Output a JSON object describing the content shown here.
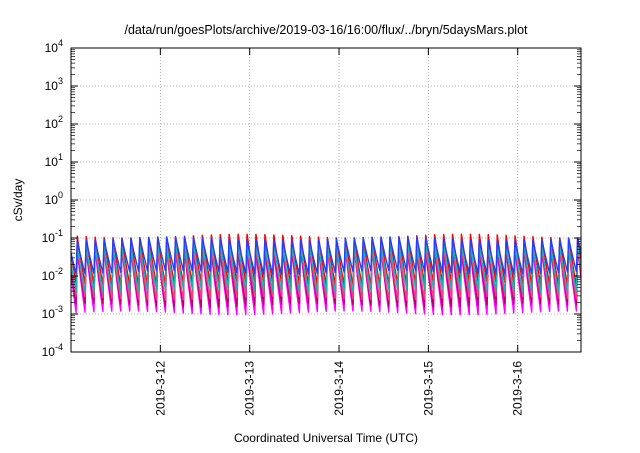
{
  "chart_data": {
    "type": "line",
    "title": "/data/run/goesPlots/archive/2019-03-16/16:00/flux/../bryn/5daysMars.plot",
    "xlabel": "Coordinated Universal Time (UTC)",
    "ylabel": "cSv/day",
    "x_type": "datetime",
    "xlim": [
      "2019-03-11T00:00",
      "2019-03-16T17:00"
    ],
    "y_scale": "log",
    "ylim": [
      0.0001,
      10000
    ],
    "grid": true,
    "y_ticks": [
      {
        "value": 0.0001,
        "base": "10",
        "exp": "-4"
      },
      {
        "value": 0.001,
        "base": "10",
        "exp": "-3"
      },
      {
        "value": 0.01,
        "base": "10",
        "exp": "-2"
      },
      {
        "value": 0.1,
        "base": "10",
        "exp": "-1"
      },
      {
        "value": 1,
        "base": "10",
        "exp": "0"
      },
      {
        "value": 10,
        "base": "10",
        "exp": "1"
      },
      {
        "value": 100,
        "base": "10",
        "exp": "2"
      },
      {
        "value": 1000,
        "base": "10",
        "exp": "3"
      },
      {
        "value": 10000,
        "base": "10",
        "exp": "4"
      }
    ],
    "x_ticks": [
      {
        "value": "2019-03-12T00:00",
        "label": "2019-3-12"
      },
      {
        "value": "2019-03-13T00:00",
        "label": "2019-3-13"
      },
      {
        "value": "2019-03-14T00:00",
        "label": "2019-3-14"
      },
      {
        "value": "2019-03-15T00:00",
        "label": "2019-3-15"
      },
      {
        "value": "2019-03-16T00:00",
        "label": "2019-3-16"
      }
    ],
    "series_pattern": {
      "description": "Sawtooth curves: each cycle rises sharply to a peak then decays back to a minimum; approx. 10 cycles per day.",
      "cycle_hours": 2.4,
      "phase_hours": 1.4,
      "rise_fraction": 0.12,
      "profiles": [
        {
          "color": "#ff00ff",
          "peak": 0.05,
          "min": 0.001
        },
        {
          "color": "#b8006a",
          "peak": 0.055,
          "min": 0.0016
        },
        {
          "color": "#f04080",
          "peak": 0.06,
          "min": 0.0025
        },
        {
          "color": "#ff0000",
          "peak": 0.12,
          "min": 0.006
        },
        {
          "color": "#20b0b0",
          "peak": 0.07,
          "min": 0.004
        },
        {
          "color": "#2040ff",
          "peak": 0.1,
          "min": 0.012
        }
      ]
    }
  }
}
